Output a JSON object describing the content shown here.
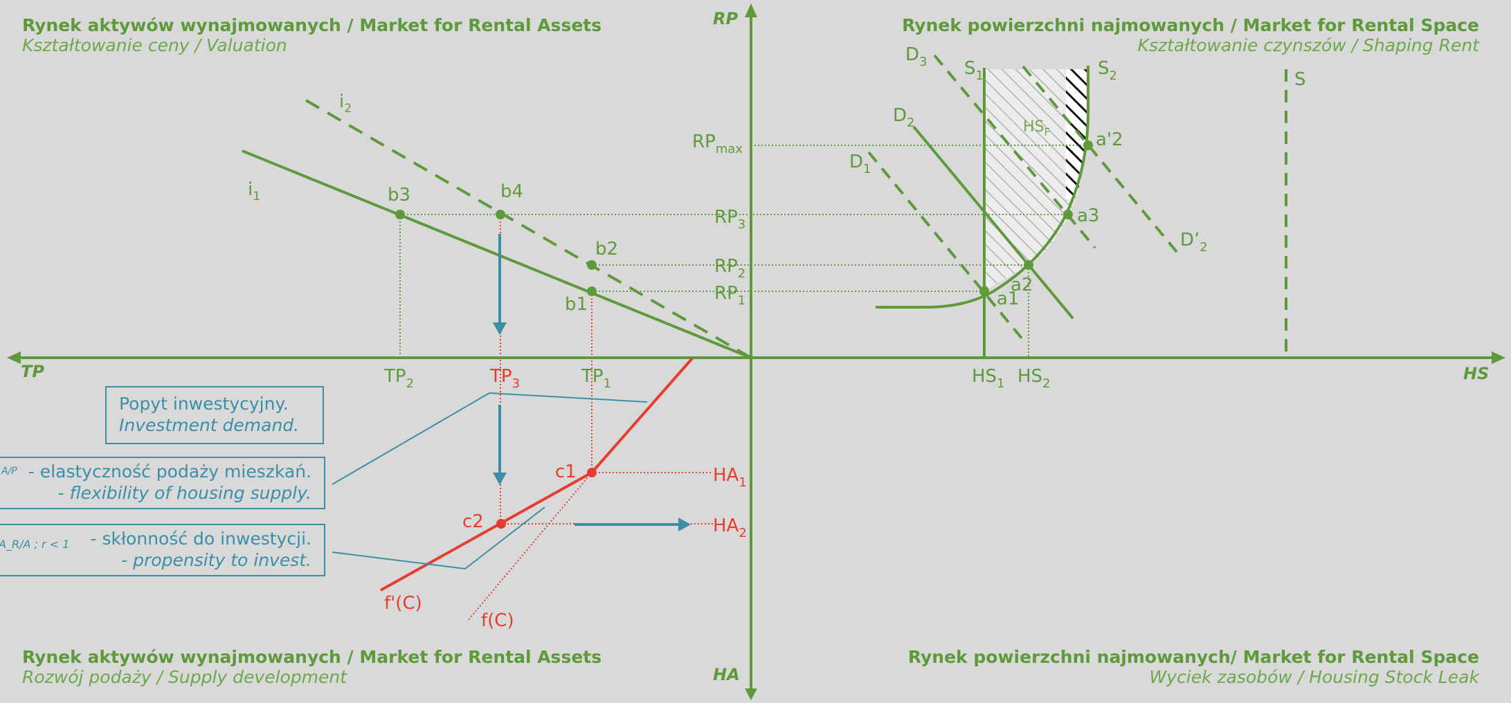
{
  "quadrants": {
    "top_left": {
      "title": "Rynek aktywów wynajmowanych / Market for Rental Assets",
      "subtitle": "Kształtowanie ceny / Valuation"
    },
    "top_right": {
      "title": "Rynek powierzchni najmowanych / Market for Rental Space",
      "subtitle": "Kształtowanie czynszów / Shaping Rent"
    },
    "bottom_left": {
      "title": "Rynek aktywów wynajmowanych / Market for Rental Assets",
      "subtitle": "Rozwój podaży / Supply development"
    },
    "bottom_right": {
      "title": "Rynek powierzchni najmowanych/ Market for Rental Space",
      "subtitle": "Wyciek zasobów / Housing Stock Leak"
    }
  },
  "axes": {
    "up": "RP",
    "down": "HA",
    "left": "TP",
    "right": "HS"
  },
  "boxes": {
    "demand": {
      "line1": "Popyt inwestycyjny.",
      "line2": "Investment demand."
    },
    "elasticity": {
      "formula": "A/P",
      "line1": "- elastyczność podaży mieszkań.",
      "line2": "- flexibility of housing supply."
    },
    "propensity": {
      "formula": "A_R/A ; r < 1",
      "line1": "- skłonność do inwestycji.",
      "line2": "- propensity to invest."
    }
  },
  "labels": {
    "rp_levels": [
      "RPmax",
      "RP3",
      "RP2",
      "RP1"
    ],
    "tp_levels": [
      "TP2",
      "TP3",
      "TP1"
    ],
    "hs_levels": [
      "HS1",
      "HS2"
    ],
    "ha_levels": [
      "HA1",
      "HA2"
    ],
    "valuation_lines": [
      "i1",
      "i2"
    ],
    "points_b": [
      "b1",
      "b2",
      "b3",
      "b4"
    ],
    "points_a": [
      "a1",
      "a2",
      "a3",
      "a'2"
    ],
    "points_c": [
      "c1",
      "c2"
    ],
    "demand_curves": [
      "D1",
      "D2",
      "D3",
      "D'2"
    ],
    "supply_curves": [
      "S1",
      "S2",
      "S"
    ],
    "hatched_region": "HSF",
    "supply_functions": [
      "f'(C)",
      "f(C)"
    ]
  },
  "colors": {
    "green": "#5e9a3c",
    "red": "#e53d2f",
    "blue": "#3a8fa7",
    "background": "#d9d9d9"
  }
}
